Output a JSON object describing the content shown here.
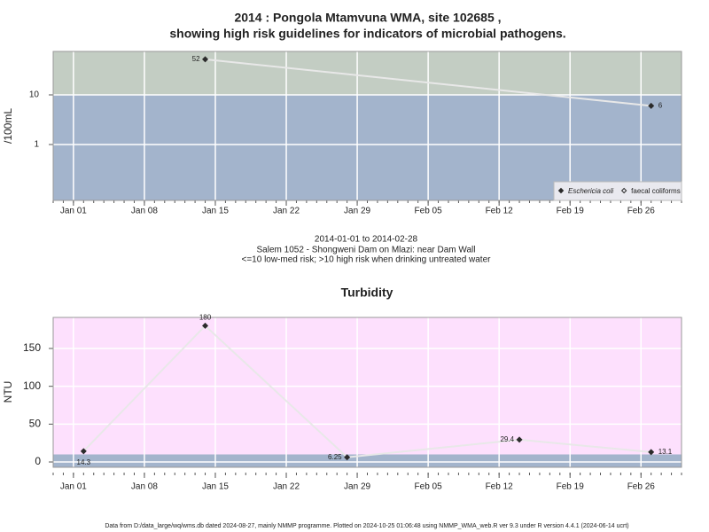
{
  "chart_data": [
    {
      "type": "line",
      "title": "2014 : Pongola Mtamvuna WMA, site 102685 ,",
      "subtitle": "showing high risk guidelines for indicators of microbial pathogens.",
      "y_label": "/100mL",
      "y_scale": "log",
      "ylim": [
        0.075,
        75
      ],
      "yticks": [
        1,
        10
      ],
      "xlim": [
        "Dec 30",
        "Mar 02"
      ],
      "xticks": [
        "Jan 01",
        "Jan 08",
        "Jan 15",
        "Jan 22",
        "Jan 29",
        "Feb 05",
        "Feb 12",
        "Feb 19",
        "Feb 26"
      ],
      "threshold": 10,
      "band_colors": [
        "#a3b4cc",
        "#c3cdc3"
      ],
      "grid": true,
      "legend": "bottom-right",
      "series": [
        {
          "name": "Eschericia coli",
          "color": "#2b2b2b",
          "line_color": "#e8e8e8",
          "marker": "diamond",
          "x": [
            "Jan 14",
            "Feb 27"
          ],
          "values": [
            52,
            6
          ]
        },
        {
          "name": "faecal coliforms",
          "color": "#2b2b2b",
          "line_color": "#e8e8e8",
          "marker": "open-diamond",
          "x": [],
          "values": []
        }
      ],
      "notes": [
        "2014-01-01 to 2014-02-28",
        "Salem 1052 - Shongweni Dam on Mlazi: near Dam Wall",
        "<=10 low-med risk; >10 high risk when drinking untreated water"
      ]
    },
    {
      "type": "line",
      "title": "Turbidity",
      "y_label": "NTU",
      "y_scale": "linear",
      "ylim": [
        -7,
        191
      ],
      "yticks": [
        0,
        50,
        100,
        150
      ],
      "xlim": [
        "Dec 30",
        "Mar 02"
      ],
      "xticks": [
        "Jan 01",
        "Jan 08",
        "Jan 15",
        "Jan 22",
        "Jan 29",
        "Feb 05",
        "Feb 12",
        "Feb 19",
        "Feb 26"
      ],
      "threshold": 10,
      "band_colors": [
        "#a3b4cc",
        "#fde0fd"
      ],
      "grid": true,
      "series": [
        {
          "name": "Turbidity",
          "color": "#2b2b2b",
          "line_color": "#e8e8e8",
          "marker": "diamond",
          "x": [
            "Jan 02",
            "Jan 14",
            "Jan 28",
            "Feb 14",
            "Feb 27"
          ],
          "values": [
            14.3,
            180,
            6.25,
            29.4,
            13.1
          ]
        }
      ]
    }
  ],
  "footer": "Data from D:/data_large/wq/wms.db dated 2024-08-27, mainly NMMP programme. Plotted on 2024-10-25 01:06:48 using NMMP_WMA_web.R ver 9.3 under R version 4.4.1 (2024-06-14 ucrt)"
}
